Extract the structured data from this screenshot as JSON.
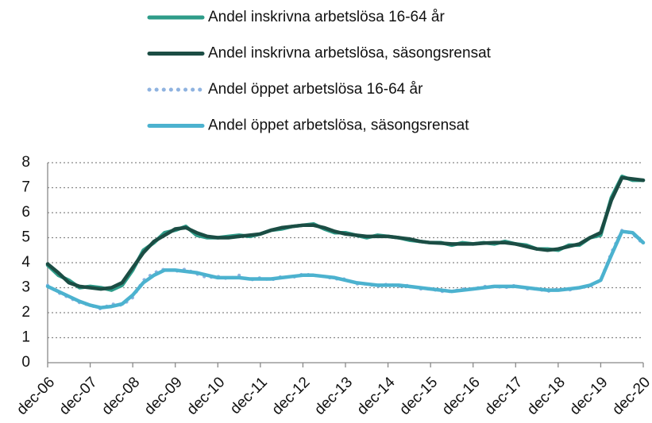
{
  "chart_data": {
    "type": "line",
    "categories": [
      "dec-06",
      null,
      null,
      null,
      "dec-07",
      null,
      null,
      null,
      "dec-08",
      null,
      null,
      null,
      "dec-09",
      null,
      null,
      null,
      "dec-10",
      null,
      null,
      null,
      "dec-11",
      null,
      null,
      null,
      "dec-12",
      null,
      null,
      null,
      "dec-13",
      null,
      null,
      null,
      "dec-14",
      null,
      null,
      null,
      "dec-15",
      null,
      null,
      null,
      "dec-16",
      null,
      null,
      null,
      "dec-17",
      null,
      null,
      null,
      "dec-18",
      null,
      null,
      null,
      "dec-19",
      null,
      null,
      null,
      "dec-20"
    ],
    "series": [
      {
        "name": "Andel inskrivna arbetslösa 16-64 år",
        "color": "#2e9c89",
        "style": "solid",
        "values": [
          3.9,
          3.5,
          3.3,
          3.0,
          3.05,
          3.0,
          2.9,
          3.1,
          3.7,
          4.5,
          4.8,
          5.2,
          5.3,
          5.45,
          5.1,
          5.0,
          5.0,
          5.05,
          5.1,
          5.05,
          5.15,
          5.3,
          5.35,
          5.45,
          5.5,
          5.55,
          5.35,
          5.2,
          5.2,
          5.1,
          5.0,
          5.1,
          5.05,
          5.0,
          4.9,
          4.85,
          4.8,
          4.8,
          4.7,
          4.8,
          4.75,
          4.8,
          4.75,
          4.85,
          4.75,
          4.7,
          4.55,
          4.55,
          4.5,
          4.7,
          4.7,
          5.0,
          5.1,
          6.6,
          7.45,
          7.3,
          7.3
        ]
      },
      {
        "name": "Andel inskrivna arbetslösa, säsongsrensat",
        "color": "#1b4d44",
        "style": "solid",
        "values": [
          3.95,
          3.6,
          3.2,
          3.05,
          3.0,
          2.95,
          3.0,
          3.2,
          3.8,
          4.4,
          4.85,
          5.1,
          5.35,
          5.4,
          5.2,
          5.05,
          5.0,
          5.0,
          5.05,
          5.1,
          5.15,
          5.3,
          5.4,
          5.45,
          5.5,
          5.5,
          5.4,
          5.25,
          5.15,
          5.1,
          5.05,
          5.05,
          5.05,
          5.0,
          4.95,
          4.85,
          4.8,
          4.78,
          4.75,
          4.75,
          4.75,
          4.78,
          4.8,
          4.8,
          4.75,
          4.65,
          4.55,
          4.5,
          4.55,
          4.65,
          4.75,
          5.0,
          5.2,
          6.5,
          7.4,
          7.35,
          7.3
        ]
      },
      {
        "name": "Andel öppet arbetslösa 16-64 år",
        "color": "#8fb3e0",
        "style": "dotted",
        "values": [
          3.1,
          2.8,
          2.6,
          2.4,
          2.3,
          2.15,
          2.35,
          2.3,
          2.6,
          3.3,
          3.6,
          3.75,
          3.65,
          3.75,
          3.55,
          3.4,
          3.45,
          3.35,
          3.5,
          3.3,
          3.4,
          3.3,
          3.45,
          3.4,
          3.55,
          3.5,
          3.45,
          3.35,
          3.35,
          3.15,
          3.15,
          3.05,
          3.15,
          3.05,
          3.1,
          2.95,
          2.95,
          2.85,
          2.85,
          2.95,
          2.95,
          3.05,
          3.05,
          3.0,
          3.1,
          2.95,
          2.95,
          2.85,
          2.95,
          2.9,
          3.0,
          3.05,
          3.3,
          4.4,
          5.3,
          5.15,
          4.75
        ]
      },
      {
        "name": "Andel öppet arbetslösa, säsongsrensat",
        "color": "#4cb2cf",
        "style": "solid",
        "values": [
          3.05,
          2.85,
          2.65,
          2.45,
          2.3,
          2.2,
          2.25,
          2.35,
          2.7,
          3.2,
          3.5,
          3.7,
          3.7,
          3.65,
          3.6,
          3.5,
          3.4,
          3.4,
          3.4,
          3.35,
          3.35,
          3.35,
          3.4,
          3.45,
          3.5,
          3.5,
          3.45,
          3.4,
          3.3,
          3.2,
          3.15,
          3.1,
          3.1,
          3.1,
          3.05,
          3.0,
          2.95,
          2.9,
          2.85,
          2.9,
          2.95,
          3.0,
          3.05,
          3.05,
          3.05,
          3.0,
          2.95,
          2.9,
          2.9,
          2.95,
          3.0,
          3.1,
          3.3,
          4.3,
          5.25,
          5.2,
          4.8
        ]
      }
    ],
    "ylim": [
      0,
      8
    ],
    "yticks": [
      0,
      1,
      2,
      3,
      4,
      5,
      6,
      7,
      8
    ],
    "grid": true,
    "legend": "top"
  }
}
